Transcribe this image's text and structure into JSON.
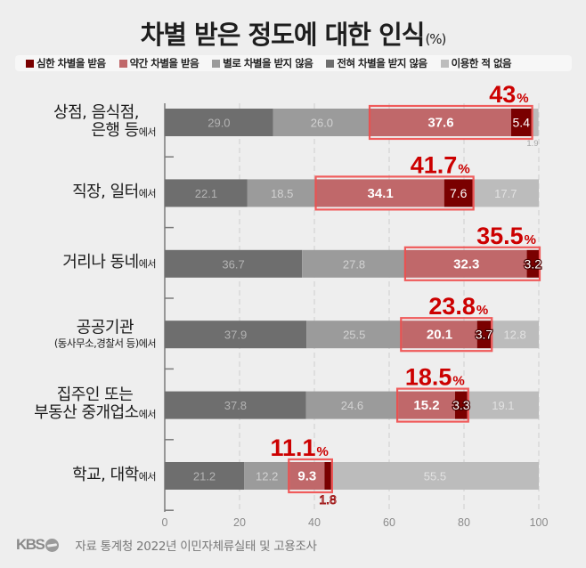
{
  "chart_data": {
    "type": "bar",
    "orientation": "horizontal",
    "stacked": true,
    "title": "차별 받은 정도에 대한 인식",
    "title_unit": "(%)",
    "xlabel": "",
    "ylabel": "",
    "xlim": [
      0,
      100
    ],
    "xticks": [
      0,
      20,
      40,
      60,
      80,
      100
    ],
    "grid": true,
    "legend_position": "top",
    "legend_order": [
      3,
      2,
      1,
      0,
      4
    ],
    "categories": [
      {
        "lines": [
          "상점, 음식점,",
          "은행 등"
        ],
        "suffix": "에서"
      },
      {
        "lines": [
          "직장, 일터"
        ],
        "suffix": "에서"
      },
      {
        "lines": [
          "거리나 동네"
        ],
        "suffix": "에서"
      },
      {
        "lines": [
          "공공기관"
        ],
        "sub": "(동사무소,경찰서 등)",
        "suffix": "에서"
      },
      {
        "lines": [
          "집주인 또는",
          "부동산 중개업소"
        ],
        "suffix": "에서"
      },
      {
        "lines": [
          "학교, 대학"
        ],
        "suffix": "에서"
      }
    ],
    "series": [
      {
        "name": "전혀 차별을 받지 않음",
        "color": "#6e6e6e",
        "values": [
          29.0,
          22.1,
          36.7,
          37.9,
          37.8,
          21.2
        ]
      },
      {
        "name": "별로 차별을 받지 않음",
        "color": "#9b9b9b",
        "values": [
          26.0,
          18.5,
          27.8,
          25.5,
          24.6,
          12.2
        ]
      },
      {
        "name": "약간 차별을 받음",
        "color": "#c0686a",
        "values": [
          37.6,
          34.1,
          32.3,
          20.1,
          15.2,
          9.3
        ]
      },
      {
        "name": "심한 차별을 받음",
        "color": "#7a0000",
        "values": [
          5.4,
          7.6,
          3.2,
          3.7,
          3.3,
          1.8
        ]
      },
      {
        "name": "이용한 적 없음",
        "color": "#bcbcbc",
        "values": [
          1.9,
          17.7,
          null,
          12.8,
          19.1,
          55.5
        ]
      }
    ],
    "discrimination_totals": [
      43,
      41.7,
      35.5,
      23.8,
      18.5,
      11.1
    ],
    "totals_unit": "%",
    "highlight_color": "#f04a4a",
    "totals_color": "#cc0000"
  },
  "footer": {
    "logo_text": "KBS",
    "source": "자료 통계청 2022년 이민자체류실태 및 고용조사"
  }
}
